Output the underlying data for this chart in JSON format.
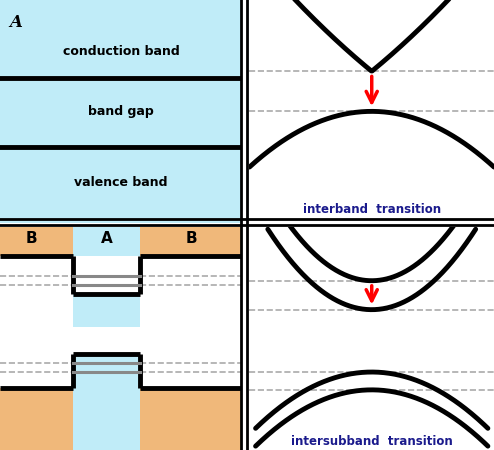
{
  "fig_width": 4.94,
  "fig_height": 4.5,
  "dpi": 100,
  "color_bg_top_left": "#c0ecf8",
  "color_bg_B": "#f0b87a",
  "color_bg_A": "#c0ecf8",
  "color_white": "#ffffff",
  "color_band": "black",
  "color_arrow": "red",
  "color_dashed": "#aaaaaa",
  "color_subband": "#888888",
  "color_label": "#1a1a8c",
  "lw_band": 3.5,
  "lw_dashed": 1.2,
  "label_A_top": "A",
  "label_cond": "conduction band",
  "label_gap": "band gap",
  "label_val": "valence band",
  "label_interband": "interband  transition",
  "label_intersubband": "intersubband  transition",
  "label_B_left": "B",
  "label_A_mid": "A",
  "label_B_right": "B"
}
